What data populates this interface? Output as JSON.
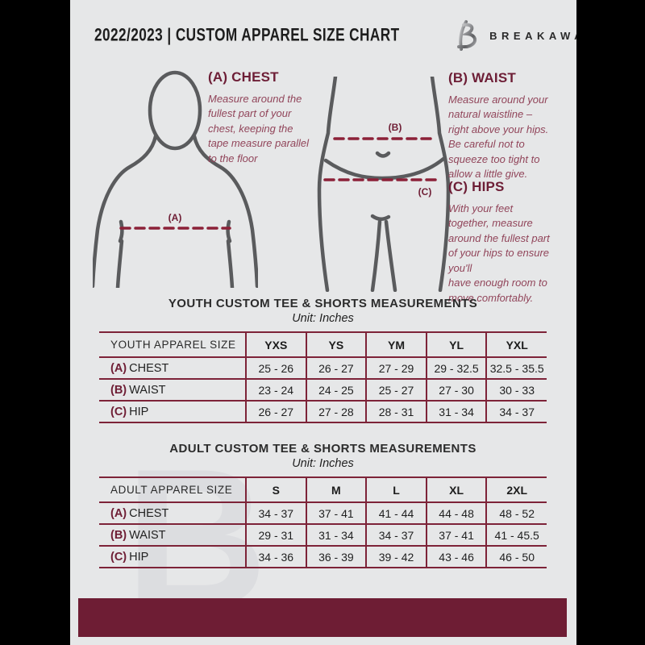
{
  "colors": {
    "page_bg": "#e6e7e8",
    "side_bars": "#000000",
    "maroon_accent": "#6e1d34",
    "table_border": "#7d2338",
    "paragraph_text": "#91455a",
    "figure_stroke": "#5a5b5d",
    "watermark": "#dcdde0"
  },
  "header": {
    "title": "2022/2023  |  CUSTOM APPAREL SIZE CHART",
    "brand": "BREAKAWAY"
  },
  "watermark_letter": "B",
  "guide": {
    "markers": {
      "a": "(A)",
      "b": "(B)",
      "c": "(C)"
    },
    "chest": {
      "heading": "(A) CHEST",
      "body": "Measure around the\nfullest part of your\nchest, keeping the\ntape measure parallel\nto the floor"
    },
    "waist": {
      "heading": "(B) WAIST",
      "body": "Measure around your\nnatural waistline –\nright above your hips.\nBe careful not to\nsqueeze too tight to\nallow a little give."
    },
    "hips": {
      "heading": "(C) HIPS",
      "body": "With your feet\ntogether, measure\naround the fullest part\nof your hips to ensure\nyou'll\nhave enough room to\nmove comfortably."
    }
  },
  "youth": {
    "title": "YOUTH CUSTOM TEE & SHORTS MEASUREMENTS",
    "unit": "Unit: Inches",
    "header": [
      "YOUTH APPAREL SIZE",
      "YXS",
      "YS",
      "YM",
      "YL",
      "YXL"
    ],
    "rows": [
      {
        "prefix": "(A)",
        "label": "CHEST",
        "values": [
          "25 - 26",
          "26 - 27",
          "27 - 29",
          "29 - 32.5",
          "32.5 - 35.5"
        ]
      },
      {
        "prefix": "(B)",
        "label": "WAIST",
        "values": [
          "23 - 24",
          "24 - 25",
          "25 - 27",
          "27 - 30",
          "30 - 33"
        ]
      },
      {
        "prefix": "(C)",
        "label": "HIP",
        "values": [
          "26 - 27",
          "27 - 28",
          "28 - 31",
          "31 - 34",
          "34 - 37"
        ]
      }
    ]
  },
  "adult": {
    "title": "ADULT CUSTOM TEE & SHORTS MEASUREMENTS",
    "unit": "Unit: Inches",
    "header": [
      "ADULT APPAREL SIZE",
      "S",
      "M",
      "L",
      "XL",
      "2XL"
    ],
    "rows": [
      {
        "prefix": "(A)",
        "label": "CHEST",
        "values": [
          "34 - 37",
          "37 - 41",
          "41 - 44",
          "44 - 48",
          "48 - 52"
        ]
      },
      {
        "prefix": "(B)",
        "label": "WAIST",
        "values": [
          "29 - 31",
          "31 - 34",
          "34 - 37",
          "37 - 41",
          "41 - 45.5"
        ]
      },
      {
        "prefix": "(C)",
        "label": "HIP",
        "values": [
          "34 - 36",
          "36 - 39",
          "39 - 42",
          "43 - 46",
          "46 - 50"
        ]
      }
    ]
  }
}
